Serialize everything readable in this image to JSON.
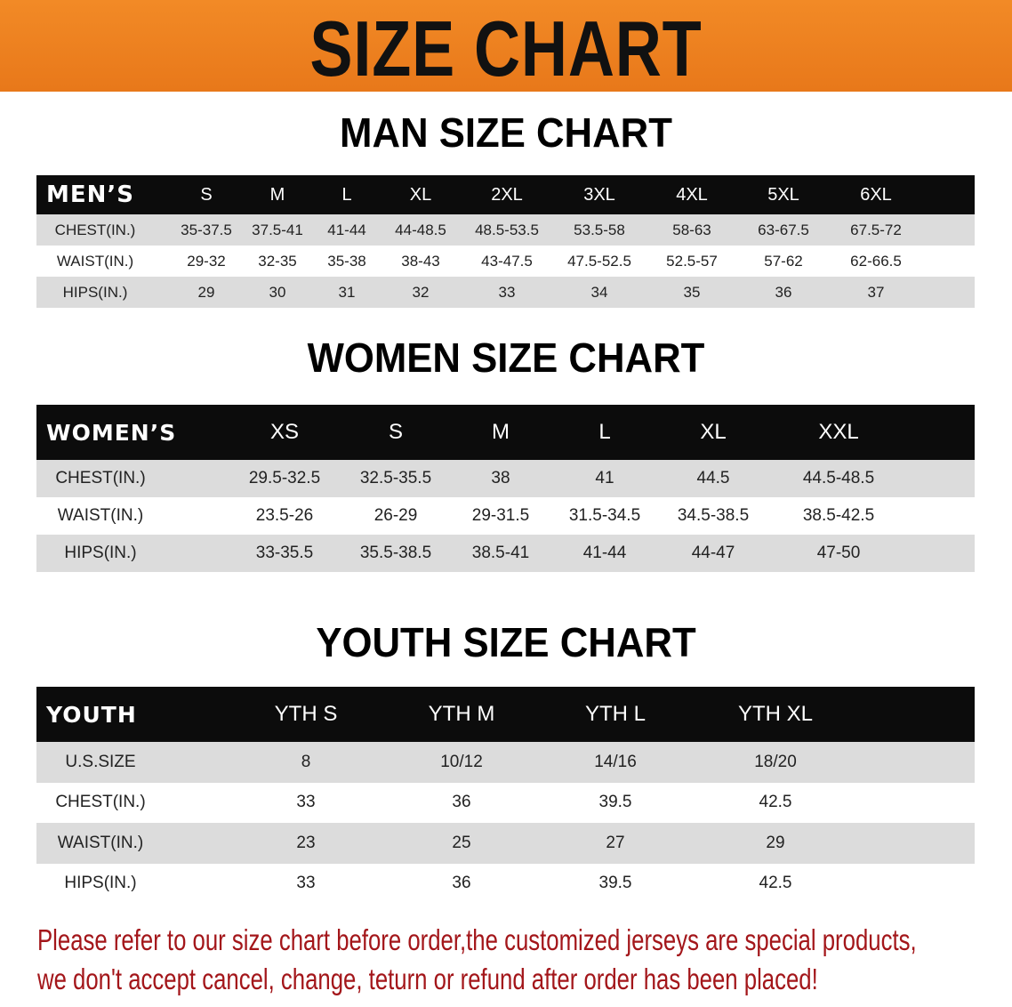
{
  "banner": {
    "title": "SIZE CHART",
    "color": "#ee8020"
  },
  "men": {
    "title": "MAN SIZE CHART",
    "header_label": "MEN’S",
    "sizes": [
      "S",
      "M",
      "L",
      "XL",
      "2XL",
      "3XL",
      "4XL",
      "5XL",
      "6XL"
    ],
    "rows": [
      {
        "label": "CHEST(IN.)",
        "values": [
          "35-37.5",
          "37.5-41",
          "41-44",
          "44-48.5",
          "48.5-53.5",
          "53.5-58",
          "58-63",
          "63-67.5",
          "67.5-72"
        ]
      },
      {
        "label": "WAIST(IN.)",
        "values": [
          "29-32",
          "32-35",
          "35-38",
          "38-43",
          "43-47.5",
          "47.5-52.5",
          "52.5-57",
          "57-62",
          "62-66.5"
        ]
      },
      {
        "label": "HIPS(IN.)",
        "values": [
          "29",
          "30",
          "31",
          "32",
          "33",
          "34",
          "35",
          "36",
          "37"
        ]
      }
    ]
  },
  "women": {
    "title": "WOMEN SIZE CHART",
    "header_label": "WOMEN’S",
    "sizes": [
      "XS",
      "S",
      "M",
      "L",
      "XL",
      "XXL"
    ],
    "rows": [
      {
        "label": "CHEST(IN.)",
        "values": [
          "29.5-32.5",
          "32.5-35.5",
          "38",
          "41",
          "44.5",
          "44.5-48.5"
        ]
      },
      {
        "label": "WAIST(IN.)",
        "values": [
          "23.5-26",
          "26-29",
          "29-31.5",
          "31.5-34.5",
          "34.5-38.5",
          "38.5-42.5"
        ]
      },
      {
        "label": "HIPS(IN.)",
        "values": [
          "33-35.5",
          "35.5-38.5",
          "38.5-41",
          "41-44",
          "44-47",
          "47-50"
        ]
      }
    ]
  },
  "youth": {
    "title": "YOUTH SIZE CHART",
    "header_label": "YOUTH",
    "sizes": [
      "YTH S",
      "YTH M",
      "YTH L",
      "YTH XL"
    ],
    "rows": [
      {
        "label": "U.S.SIZE",
        "values": [
          "8",
          "10/12",
          "14/16",
          "18/20"
        ]
      },
      {
        "label": "CHEST(IN.)",
        "values": [
          "33",
          "36",
          "39.5",
          "42.5"
        ]
      },
      {
        "label": "WAIST(IN.)",
        "values": [
          "23",
          "25",
          "27",
          "29"
        ]
      },
      {
        "label": "HIPS(IN.)",
        "values": [
          "33",
          "36",
          "39.5",
          "42.5"
        ]
      }
    ]
  },
  "notice": {
    "line1": "Please refer to our size chart before order,the customized jerseys are special products,",
    "line2": "we don't accept cancel, change, teturn or refund after order has been placed!",
    "color": "#a3161a"
  }
}
